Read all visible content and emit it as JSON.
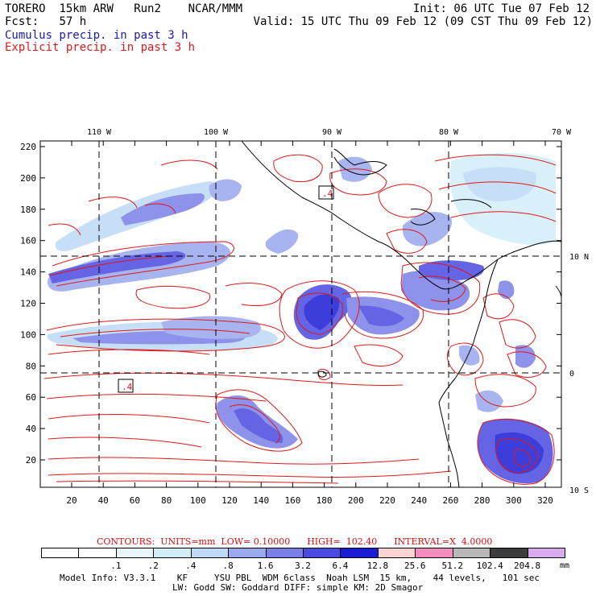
{
  "header": {
    "model": "TORERO",
    "resolution": "15km",
    "core": "ARW",
    "run": "Run2",
    "org": "NCAR/MMM",
    "init_label": "Init:",
    "init_time": "06 UTC Tue 07 Feb 12",
    "fcst_label": "Fcst:",
    "fcst_value": "57 h",
    "valid_label": "Valid:",
    "valid_time": "15 UTC Thu 09 Feb 12 (09 CST Thu 09 Feb 12)",
    "field1": "Cumulus precip. in past 3 h",
    "field2": "Explicit precip. in past 3 h"
  },
  "colors": {
    "field1": "#1a1aa8",
    "field2": "#e01818",
    "contour": "#e01818",
    "coast": "#000000"
  },
  "map": {
    "lon_labels": [
      "110 W",
      "100 W",
      "90 W",
      "80 W",
      "70 W"
    ],
    "lat_labels": [
      "10 N",
      "0",
      "10 S"
    ],
    "y_ticks": [
      "20",
      "40",
      "60",
      "80",
      "100",
      "120",
      "140",
      "160",
      "180",
      "200",
      "220"
    ],
    "x_ticks": [
      "20",
      "40",
      "60",
      "80",
      "100",
      "120",
      "140",
      "160",
      "180",
      "200",
      "220",
      "240",
      "260",
      "280",
      "300",
      "320"
    ],
    "contour_labels": [
      ".4",
      ".4"
    ]
  },
  "contour_info": {
    "text": "CONTOURS:  UNITS=mm  LOW= 0.10000      HIGH=  102.40      INTERVAL=X  4.0000"
  },
  "legend": {
    "colors": [
      "#ffffff",
      "#ffffff",
      "#e8f6fa",
      "#d2eef8",
      "#bdd9f5",
      "#9aa8ee",
      "#7b80e8",
      "#4a4ae0",
      "#1c1cd6",
      "#fbd3d3",
      "#f58cbe",
      "#b8b8b8",
      "#3c3c3c",
      "#d9aaf0"
    ],
    "labels": [
      ".1",
      ".2",
      ".4",
      ".8",
      "1.6",
      "3.2",
      "6.4",
      "12.8",
      "25.6",
      "51.2",
      "102.4",
      "204.8"
    ],
    "unit": "mm"
  },
  "footer": {
    "line1": "Model Info: V3.3.1    KF     YSU PBL  WDM 6class  Noah LSM  15 km,    44 levels,   101 sec",
    "line2": "LW: Godd SW: Goddard DIFF: simple KM: 2D Smagor"
  }
}
